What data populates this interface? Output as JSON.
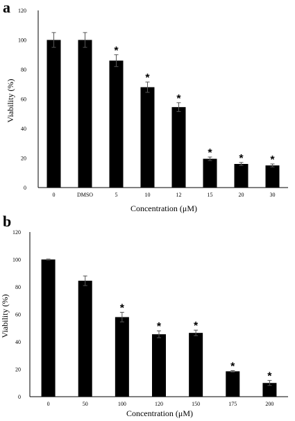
{
  "chart_data": [
    {
      "type": "bar",
      "panel_label": "a",
      "categories": [
        "0",
        "DMSO",
        "5",
        "10",
        "12",
        "15",
        "20",
        "30"
      ],
      "values": [
        100,
        100,
        86,
        68,
        54.5,
        19.5,
        16,
        15
      ],
      "errors": [
        5,
        5,
        4,
        3.5,
        3,
        1.2,
        1,
        1
      ],
      "significance": [
        "",
        "",
        "*",
        "*",
        "*",
        "*",
        "*",
        "*"
      ],
      "xlabel": "Concentration (μM)",
      "ylabel": "Viability (%)",
      "ylim": [
        0,
        120
      ],
      "yticks": [
        "0",
        "20",
        "40",
        "60",
        "80",
        "100",
        "120"
      ],
      "bar_color": "#000000",
      "grid": false
    },
    {
      "type": "bar",
      "panel_label": "b",
      "categories": [
        "0",
        "50",
        "100",
        "120",
        "150",
        "175",
        "200"
      ],
      "values": [
        100,
        84.5,
        58,
        45.5,
        46.5,
        18.5,
        10
      ],
      "errors": [
        0.3,
        3.5,
        3.5,
        2.5,
        2,
        0.5,
        1.8
      ],
      "significance": [
        "",
        "",
        "*",
        "*",
        "*",
        "*",
        "*"
      ],
      "xlabel": "Concentration (μM)",
      "ylabel": "Viability (%)",
      "ylim": [
        0,
        120
      ],
      "yticks": [
        "0",
        "20",
        "40",
        "60",
        "80",
        "100",
        "120"
      ],
      "bar_color": "#000000",
      "grid": false
    }
  ]
}
